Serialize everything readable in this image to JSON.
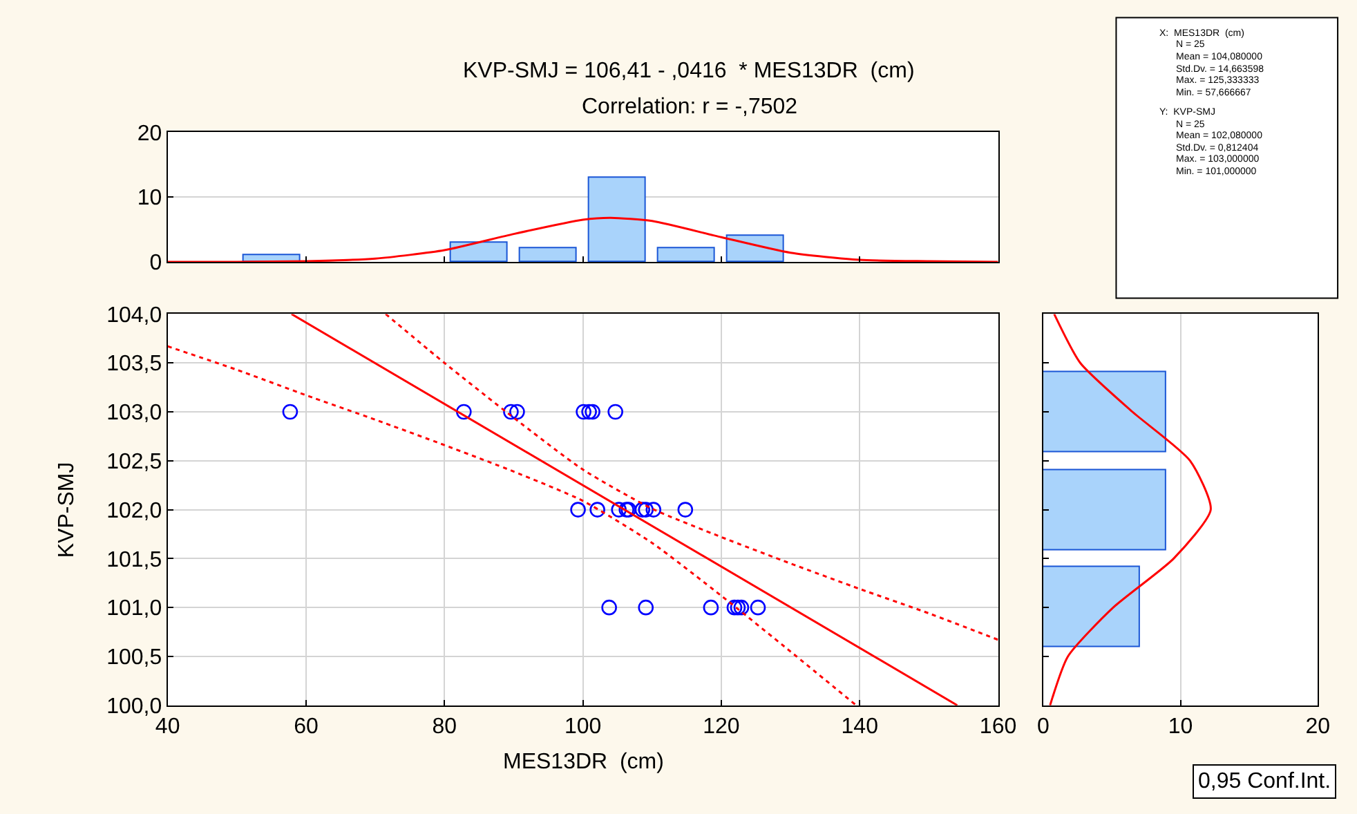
{
  "chart_data": [
    {
      "type": "histogram",
      "title": "KVP-SMJ = 106,41 - ,0416  * MES13DR  (cm)",
      "subtitle": "Correlation: r = -,7502",
      "bins": [
        50,
        60,
        70,
        80,
        90,
        100,
        110,
        120,
        130
      ],
      "values": [
        1,
        0,
        0,
        3,
        2,
        13,
        2,
        4
      ],
      "color": "#a9d3fb",
      "series": [
        {
          "type": "line",
          "color": "#ff0000",
          "x": [
            40,
            50,
            60,
            70,
            80,
            90,
            100,
            104,
            110,
            120,
            130,
            140,
            150,
            160
          ],
          "values": [
            0,
            0.0,
            0.1,
            0.5,
            1.8,
            4.3,
            6.5,
            6.8,
            6.3,
            3.8,
            1.4,
            0.3,
            0.1,
            0
          ]
        }
      ],
      "xlim": [
        40,
        160
      ],
      "xticks": [
        40,
        60,
        80,
        100,
        120,
        140,
        160
      ],
      "ylim": [
        0,
        20
      ],
      "yticks": [
        0,
        10,
        20
      ],
      "grid": "y",
      "tick_labels": "y"
    },
    {
      "type": "scatter",
      "xlabel": "MES13DR  (cm)",
      "ylabel": "KVP-SMJ",
      "series": [
        {
          "type": "scatter",
          "marker": "circle",
          "color": "#0000ff",
          "x": [
            57.7,
            82.8,
            89.6,
            90.5,
            100.1,
            100.9,
            101.2,
            101.4,
            104.7,
            99.3,
            102.1,
            105.2,
            106.3,
            106.6,
            108.6,
            109.1,
            110.2,
            114.8,
            103.8,
            109.1,
            118.5,
            121.9,
            122.4,
            122.9,
            125.3
          ],
          "values": [
            103,
            103,
            103,
            103,
            103,
            103,
            null,
            103,
            103,
            102,
            102,
            102,
            102,
            102,
            102,
            102,
            102,
            102,
            101,
            101,
            101,
            101,
            101,
            101,
            101
          ]
        },
        {
          "type": "line",
          "color": "#ff0000",
          "line_style": "solid",
          "x": [
            57.9,
            154.1
          ],
          "values": [
            104.0,
            100.0
          ]
        },
        {
          "type": "line",
          "color": "#ff0000",
          "line_style": "dotted",
          "x": [
            71.5,
            80,
            90,
            100,
            110,
            120,
            130,
            140,
            150,
            160
          ],
          "values": [
            104.0,
            103.5,
            102.94,
            102.41,
            102.01,
            101.72,
            101.45,
            101.19,
            100.94,
            100.67
          ]
        },
        {
          "type": "line",
          "color": "#ff0000",
          "line_style": "dotted",
          "x": [
            40,
            50,
            60,
            70,
            80,
            90,
            100,
            110,
            120,
            130,
            139.5
          ],
          "values": [
            103.67,
            103.43,
            103.17,
            102.92,
            102.66,
            102.39,
            102.09,
            101.66,
            101.12,
            100.55,
            100.0
          ]
        }
      ],
      "xlim": [
        40,
        160
      ],
      "xticks": [
        40,
        60,
        80,
        100,
        120,
        140,
        160
      ],
      "ylim": [
        100,
        104
      ],
      "yticks": [
        {
          "value": 100,
          "label": "100,0"
        },
        {
          "value": 100.5,
          "label": "100,5"
        },
        {
          "value": 101,
          "label": "101,0"
        },
        {
          "value": 101.5,
          "label": "101,5"
        },
        {
          "value": 102,
          "label": "102,0"
        },
        {
          "value": 102.5,
          "label": "102,5"
        },
        {
          "value": 103,
          "label": "103,0"
        },
        {
          "value": 103.5,
          "label": "103,5"
        },
        {
          "value": 104,
          "label": "104,0"
        }
      ],
      "grid": true,
      "annotations": [
        "0,95 Conf.Int."
      ]
    },
    {
      "type": "histogram",
      "orientation": "horizontal",
      "bins": [
        100.5,
        101.5,
        102.5,
        103.5
      ],
      "values": [
        7,
        9,
        9
      ],
      "color": "#a9d3fb",
      "series": [
        {
          "type": "line",
          "color": "#ff0000",
          "x": [
            100,
            100.5,
            101,
            101.5,
            102,
            102.5,
            103,
            103.5,
            104
          ],
          "values": [
            0.5,
            1.8,
            5.1,
            9.5,
            12.2,
            10.7,
            6.5,
            2.7,
            0.8
          ]
        }
      ],
      "xlim": [
        0,
        20
      ],
      "xticks": [
        0,
        10,
        20
      ],
      "ylim": [
        100,
        104
      ],
      "yticks": [
        100,
        100.5,
        101,
        101.5,
        102,
        102.5,
        103,
        103.5,
        104
      ],
      "grid": "x",
      "tick_labels": "x"
    },
    {
      "type": "other",
      "annotations": [
        "X:  MES13DR  (cm)",
        "N = 25",
        "Mean = 104,080000",
        "Std.Dv. = 14,663598",
        "Max. = 125,333333",
        "Min. = 57,666667",
        "Y:  KVP-SMJ",
        "N = 25",
        "Mean = 102,080000",
        "Std.Dv. = 0,812404",
        "Max. = 103,000000",
        "Min. = 101,000000"
      ]
    }
  ]
}
